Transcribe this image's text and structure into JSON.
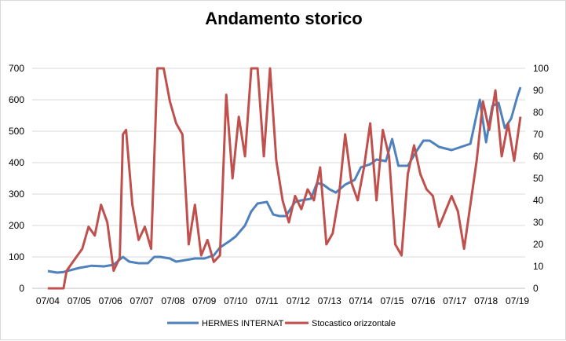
{
  "chart_data": {
    "type": "line",
    "title": "Andamento storico",
    "xlabel": "",
    "ylabel": "",
    "x_tick_labels": [
      "07/04",
      "07/05",
      "07/06",
      "07/07",
      "07/08",
      "07/09",
      "07/10",
      "07/11",
      "07/12",
      "07/13",
      "07/14",
      "07/15",
      "07/16",
      "07/17",
      "07/18",
      "07/19"
    ],
    "y_left": {
      "ylim": [
        0,
        700
      ],
      "ticks": [
        "0",
        "100",
        "200",
        "300",
        "400",
        "500",
        "600",
        "700"
      ]
    },
    "y_right": {
      "ylim": [
        0,
        100
      ],
      "ticks": [
        "0",
        "10",
        "20",
        "30",
        "40",
        "50",
        "60",
        "70",
        "80",
        "90",
        "100"
      ]
    },
    "grid": "horizontal",
    "legend_placement": "bottom",
    "series": [
      {
        "name": "HERMES INTERNAT",
        "axis": "left",
        "color": "#4f81bd",
        "x": [
          2004.5,
          2004.8,
          2005.0,
          2005.5,
          2005.9,
          2006.3,
          2006.6,
          2006.9,
          2007.1,
          2007.4,
          2007.7,
          2007.9,
          2008.1,
          2008.4,
          2008.6,
          2008.9,
          2009.2,
          2009.5,
          2009.8,
          2010.0,
          2010.3,
          2010.5,
          2010.8,
          2011.0,
          2011.2,
          2011.5,
          2011.7,
          2011.9,
          2012.1,
          2012.4,
          2012.6,
          2012.9,
          2013.1,
          2013.3,
          2013.5,
          2013.7,
          2014.0,
          2014.3,
          2014.5,
          2014.8,
          2015.0,
          2015.3,
          2015.5,
          2015.7,
          2016.0,
          2016.3,
          2016.5,
          2016.7,
          2017.0,
          2017.2,
          2017.4,
          2017.7,
          2018.0,
          2018.3,
          2018.5,
          2018.7,
          2018.9,
          2019.1,
          2019.3,
          2019.5,
          2019.6
        ],
        "values": [
          55,
          50,
          52,
          65,
          72,
          70,
          75,
          100,
          85,
          80,
          80,
          100,
          100,
          95,
          85,
          90,
          95,
          95,
          105,
          130,
          150,
          165,
          200,
          245,
          270,
          275,
          235,
          230,
          230,
          275,
          280,
          285,
          335,
          330,
          315,
          305,
          330,
          345,
          385,
          395,
          410,
          405,
          475,
          390,
          390,
          440,
          470,
          470,
          450,
          445,
          440,
          450,
          460,
          600,
          465,
          580,
          590,
          510,
          540,
          610,
          640
        ]
      },
      {
        "name": "Stocastico orizzontale",
        "axis": "right",
        "color": "#c0504d",
        "x": [
          2004.5,
          2005.0,
          2005.1,
          2005.3,
          2005.6,
          2005.8,
          2006.0,
          2006.2,
          2006.4,
          2006.6,
          2006.8,
          2006.9,
          2007.0,
          2007.2,
          2007.4,
          2007.6,
          2007.8,
          2008.0,
          2008.2,
          2008.4,
          2008.6,
          2008.8,
          2009.0,
          2009.2,
          2009.4,
          2009.6,
          2009.8,
          2010.0,
          2010.2,
          2010.4,
          2010.6,
          2010.8,
          2011.0,
          2011.2,
          2011.4,
          2011.6,
          2011.8,
          2012.0,
          2012.2,
          2012.4,
          2012.6,
          2012.8,
          2013.0,
          2013.2,
          2013.4,
          2013.6,
          2013.8,
          2014.0,
          2014.2,
          2014.4,
          2014.6,
          2014.8,
          2015.0,
          2015.2,
          2015.4,
          2015.6,
          2015.8,
          2016.0,
          2016.2,
          2016.4,
          2016.6,
          2016.8,
          2017.0,
          2017.2,
          2017.4,
          2017.6,
          2017.8,
          2018.0,
          2018.2,
          2018.4,
          2018.6,
          2018.8,
          2019.0,
          2019.2,
          2019.4,
          2019.6
        ],
        "values": [
          0,
          0,
          8,
          12,
          18,
          28,
          24,
          38,
          30,
          8,
          14,
          70,
          72,
          38,
          22,
          28,
          18,
          100,
          100,
          85,
          75,
          70,
          20,
          38,
          15,
          22,
          12,
          15,
          88,
          50,
          78,
          60,
          100,
          100,
          60,
          100,
          58,
          40,
          30,
          42,
          36,
          45,
          40,
          55,
          20,
          25,
          42,
          70,
          48,
          40,
          55,
          75,
          40,
          72,
          60,
          20,
          15,
          52,
          65,
          52,
          45,
          42,
          28,
          35,
          42,
          35,
          18,
          38,
          58,
          85,
          72,
          90,
          60,
          75,
          58,
          78
        ]
      }
    ]
  }
}
